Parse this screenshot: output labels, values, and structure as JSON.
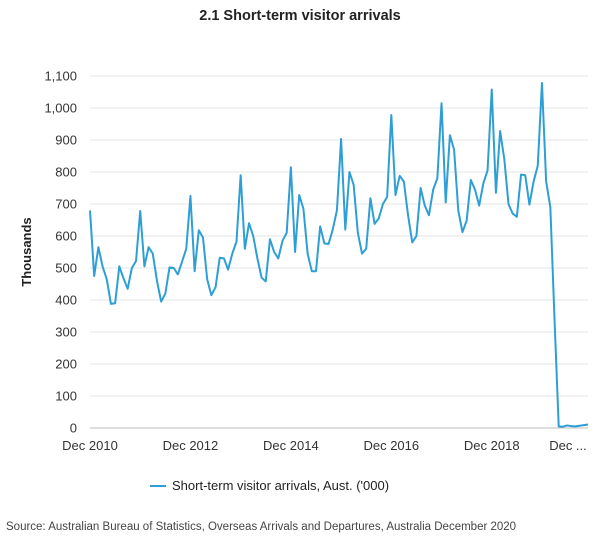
{
  "chart_data": {
    "type": "line",
    "title": "2.1 Short-term visitor arrivals",
    "ylabel": "Thousands",
    "xlabel": "",
    "ylim": [
      0,
      1100
    ],
    "yticks": [
      0,
      100,
      200,
      300,
      400,
      500,
      600,
      700,
      800,
      900,
      1000,
      1100
    ],
    "ytick_labels": [
      "0",
      "100",
      "200",
      "300",
      "400",
      "500",
      "600",
      "700",
      "800",
      "900",
      "1,000",
      "1,100"
    ],
    "xtick_labels": [
      "Dec 2010",
      "Dec 2012",
      "Dec 2014",
      "Dec 2016",
      "Dec 2018",
      "Dec ..."
    ],
    "x_start": "Dec 2010",
    "x_end": "Dec 2020",
    "frequency": "monthly",
    "grid": true,
    "legend_position": "bottom",
    "series": [
      {
        "name": "Short-term visitor arrivals, Aust. ('000)",
        "color": "#2e9fd6",
        "values": [
          680,
          475,
          565,
          505,
          465,
          388,
          390,
          505,
          468,
          435,
          500,
          522,
          678,
          505,
          565,
          545,
          460,
          395,
          420,
          502,
          500,
          480,
          520,
          560,
          725,
          490,
          618,
          595,
          465,
          415,
          440,
          532,
          530,
          495,
          545,
          582,
          790,
          560,
          640,
          600,
          530,
          470,
          458,
          590,
          550,
          530,
          585,
          610,
          815,
          550,
          728,
          685,
          545,
          490,
          490,
          630,
          577,
          575,
          620,
          680,
          903,
          620,
          800,
          760,
          610,
          545,
          560,
          718,
          638,
          655,
          700,
          722,
          978,
          728,
          788,
          770,
          665,
          580,
          600,
          750,
          695,
          665,
          745,
          780,
          1015,
          705,
          915,
          870,
          680,
          612,
          648,
          775,
          745,
          695,
          765,
          805,
          1058,
          735,
          928,
          840,
          700,
          670,
          660,
          792,
          790,
          698,
          770,
          820,
          1078,
          770,
          690,
          340,
          5,
          4,
          8,
          6,
          5,
          7,
          9,
          11
        ]
      }
    ]
  },
  "source": "Source: Australian Bureau of Statistics, Overseas Arrivals and Departures, Australia December 2020"
}
